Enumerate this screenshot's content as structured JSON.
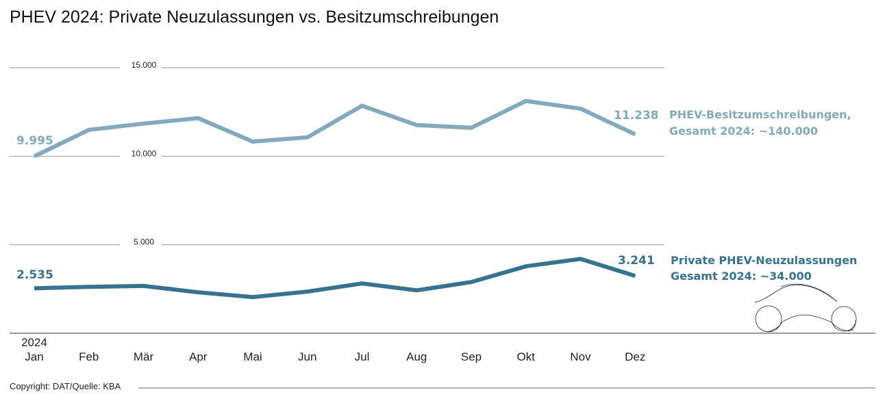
{
  "chart_data": {
    "type": "line",
    "title": "PHEV 2024: Private Neuzulassungen vs. Besitzumschreibungen",
    "xlabel": "",
    "ylabel": "",
    "year_label": "2024",
    "categories": [
      "Jan",
      "Feb",
      "Mär",
      "Apr",
      "Mai",
      "Jun",
      "Jul",
      "Aug",
      "Sep",
      "Okt",
      "Nov",
      "Dez"
    ],
    "ylim": [
      0,
      15000
    ],
    "yticks": [
      {
        "value": 15000,
        "label": "15.000"
      },
      {
        "value": 10000,
        "label": "10.000"
      },
      {
        "value": 5000,
        "label": "5.000"
      }
    ],
    "grid": true,
    "series": [
      {
        "name": "PHEV-Besitzumschreibungen",
        "legend_line1": "PHEV-Besitzumschreibungen,",
        "legend_line2": "Gesamt 2024: ~140.000",
        "color": "#82a9be",
        "values": [
          9995,
          11490,
          11840,
          12150,
          10830,
          11070,
          12850,
          11760,
          11610,
          13120,
          12690,
          11238
        ],
        "first_label": "9.995",
        "last_label": "11.238"
      },
      {
        "name": "Private PHEV-Neuzulassungen",
        "legend_line1": "Private PHEV-Neuzulassungen",
        "legend_line2": "Gesamt 2024: ~34.000",
        "color": "#35738f",
        "values": [
          2535,
          2620,
          2670,
          2310,
          2040,
          2350,
          2810,
          2420,
          2890,
          3780,
          4200,
          3241
        ],
        "first_label": "2.535",
        "last_label": "3.241"
      }
    ],
    "footer": "Copyright: DAT/Quelle: KBA",
    "icon": "car-outline-icon"
  }
}
